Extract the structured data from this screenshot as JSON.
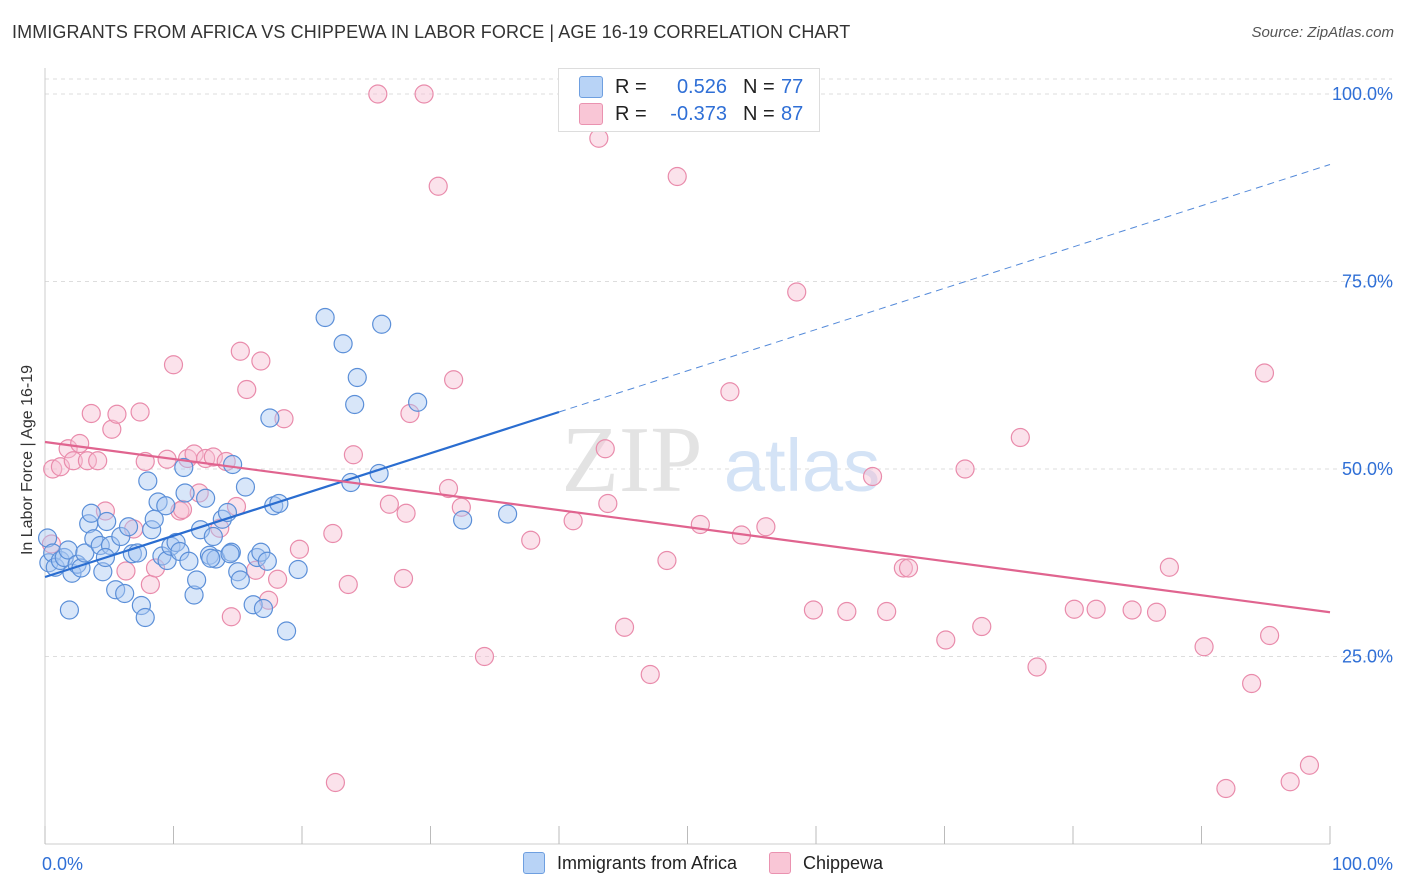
{
  "header": {
    "title": "IMMIGRANTS FROM AFRICA VS CHIPPEWA IN LABOR FORCE | AGE 16-19 CORRELATION CHART",
    "source": "Source: ZipAtlas.com"
  },
  "watermark": {
    "zip": "ZIP",
    "atlas": "atlas"
  },
  "colors": {
    "blue_fill": "#a9c8f2",
    "blue_stroke": "#5b8fd8",
    "blue_line": "#2a6dd0",
    "pink_fill": "#f7bfd2",
    "pink_stroke": "#e98bab",
    "pink_line": "#e0648f",
    "tick_label": "#2f6fd6"
  },
  "legend": {
    "r_label": "R =",
    "n_label": "N =",
    "rows": [
      {
        "series": "Immigrants from Africa",
        "r": "0.526",
        "n": "77"
      },
      {
        "series": "Chippewa",
        "r": "-0.373",
        "n": "87"
      }
    ]
  },
  "chart_data": {
    "type": "scatter",
    "title": "IMMIGRANTS FROM AFRICA VS CHIPPEWA IN LABOR FORCE | AGE 16-19 CORRELATION CHART",
    "xlabel": "",
    "ylabel": "In Labor Force | Age 16-19",
    "xlim": [
      0,
      100
    ],
    "ylim": [
      0,
      102
    ],
    "x_tick_labels": [
      "0.0%",
      "100.0%"
    ],
    "y_ticks": [
      25,
      50,
      75,
      100
    ],
    "y_tick_labels": [
      "25.0%",
      "50.0%",
      "75.0%",
      "100.0%"
    ],
    "grid": "horizontal dashed",
    "series": [
      {
        "name": "Immigrants from Africa",
        "r": 0.526,
        "n": 77,
        "trend": {
          "x0": 0,
          "y0": 35.6,
          "x1": 40,
          "y1": 57.6,
          "x_ext": 100,
          "y_ext": 90.6
        },
        "points": [
          [
            0.2,
            40.8
          ],
          [
            0.3,
            37.5
          ],
          [
            0.6,
            38.8
          ],
          [
            0.8,
            36.9
          ],
          [
            1.2,
            37.8
          ],
          [
            1.5,
            38.2
          ],
          [
            1.8,
            39.2
          ],
          [
            1.9,
            31.2
          ],
          [
            2.1,
            36.1
          ],
          [
            2.5,
            37.3
          ],
          [
            2.8,
            36.8
          ],
          [
            3.1,
            38.8
          ],
          [
            3.4,
            42.7
          ],
          [
            3.6,
            44.1
          ],
          [
            3.8,
            40.7
          ],
          [
            4.3,
            39.8
          ],
          [
            4.5,
            36.3
          ],
          [
            4.8,
            43.0
          ],
          [
            5.1,
            39.8
          ],
          [
            5.5,
            33.9
          ],
          [
            5.9,
            41.0
          ],
          [
            6.2,
            33.4
          ],
          [
            6.5,
            42.3
          ],
          [
            6.8,
            38.7
          ],
          [
            7.2,
            38.8
          ],
          [
            7.5,
            31.8
          ],
          [
            7.8,
            30.2
          ],
          [
            8.0,
            48.4
          ],
          [
            8.3,
            41.9
          ],
          [
            8.5,
            43.3
          ],
          [
            8.8,
            45.6
          ],
          [
            9.1,
            38.4
          ],
          [
            9.5,
            37.8
          ],
          [
            9.8,
            39.7
          ],
          [
            10.2,
            40.2
          ],
          [
            10.5,
            39.0
          ],
          [
            10.8,
            50.2
          ],
          [
            10.9,
            46.8
          ],
          [
            11.2,
            37.7
          ],
          [
            11.6,
            33.2
          ],
          [
            11.8,
            35.2
          ],
          [
            12.1,
            41.9
          ],
          [
            12.5,
            46.1
          ],
          [
            12.8,
            38.5
          ],
          [
            13.1,
            41.0
          ],
          [
            13.3,
            38.0
          ],
          [
            13.8,
            43.3
          ],
          [
            14.2,
            44.2
          ],
          [
            14.5,
            38.9
          ],
          [
            14.6,
            50.6
          ],
          [
            15.0,
            36.3
          ],
          [
            15.2,
            35.2
          ],
          [
            15.6,
            47.6
          ],
          [
            16.2,
            31.9
          ],
          [
            16.5,
            38.2
          ],
          [
            16.8,
            38.9
          ],
          [
            17.0,
            31.4
          ],
          [
            17.3,
            37.7
          ],
          [
            17.5,
            56.8
          ],
          [
            17.8,
            45.1
          ],
          [
            18.2,
            45.4
          ],
          [
            18.8,
            28.4
          ],
          [
            19.7,
            36.6
          ],
          [
            21.8,
            70.2
          ],
          [
            23.2,
            66.7
          ],
          [
            23.8,
            48.2
          ],
          [
            24.1,
            58.6
          ],
          [
            24.3,
            62.2
          ],
          [
            26.0,
            49.4
          ],
          [
            26.2,
            69.3
          ],
          [
            29.0,
            58.9
          ],
          [
            32.5,
            43.2
          ],
          [
            36.0,
            44.0
          ],
          [
            14.4,
            38.7
          ],
          [
            12.9,
            38.1
          ],
          [
            4.7,
            38.2
          ],
          [
            9.4,
            45.1
          ]
        ]
      },
      {
        "name": "Chippewa",
        "r": -0.373,
        "n": 87,
        "trend": {
          "x0": 0,
          "y0": 53.6,
          "x1": 100,
          "y1": 30.9
        },
        "points": [
          [
            0.5,
            40.0
          ],
          [
            0.6,
            50.0
          ],
          [
            1.2,
            50.3
          ],
          [
            1.8,
            52.7
          ],
          [
            2.2,
            51.1
          ],
          [
            2.7,
            53.4
          ],
          [
            3.3,
            51.1
          ],
          [
            3.6,
            57.4
          ],
          [
            4.1,
            51.1
          ],
          [
            4.7,
            44.4
          ],
          [
            5.2,
            55.3
          ],
          [
            5.6,
            57.3
          ],
          [
            6.3,
            36.4
          ],
          [
            6.9,
            42.0
          ],
          [
            7.4,
            57.6
          ],
          [
            7.8,
            51.0
          ],
          [
            8.2,
            34.6
          ],
          [
            8.6,
            36.8
          ],
          [
            9.5,
            51.3
          ],
          [
            10.0,
            63.9
          ],
          [
            10.5,
            44.4
          ],
          [
            10.7,
            44.6
          ],
          [
            11.1,
            51.4
          ],
          [
            11.6,
            52.0
          ],
          [
            12.0,
            46.8
          ],
          [
            12.5,
            51.4
          ],
          [
            13.1,
            51.6
          ],
          [
            13.6,
            42.1
          ],
          [
            14.1,
            51.0
          ],
          [
            14.5,
            30.3
          ],
          [
            14.9,
            45.0
          ],
          [
            15.2,
            65.7
          ],
          [
            15.7,
            60.6
          ],
          [
            16.4,
            36.5
          ],
          [
            16.8,
            64.4
          ],
          [
            17.4,
            32.5
          ],
          [
            18.1,
            35.3
          ],
          [
            18.6,
            56.7
          ],
          [
            19.8,
            39.3
          ],
          [
            22.4,
            41.4
          ],
          [
            22.6,
            8.2
          ],
          [
            23.6,
            34.6
          ],
          [
            24.0,
            51.9
          ],
          [
            25.9,
            100.0
          ],
          [
            26.8,
            45.3
          ],
          [
            27.9,
            35.4
          ],
          [
            28.1,
            44.1
          ],
          [
            28.4,
            57.4
          ],
          [
            29.5,
            100.0
          ],
          [
            30.6,
            87.7
          ],
          [
            31.4,
            47.4
          ],
          [
            31.8,
            61.9
          ],
          [
            32.4,
            44.9
          ],
          [
            34.2,
            25.0
          ],
          [
            37.8,
            40.5
          ],
          [
            41.1,
            43.1
          ],
          [
            43.1,
            94.1
          ],
          [
            43.6,
            52.7
          ],
          [
            43.8,
            45.4
          ],
          [
            45.1,
            28.9
          ],
          [
            47.1,
            22.6
          ],
          [
            48.4,
            37.8
          ],
          [
            49.2,
            89.0
          ],
          [
            51.0,
            42.6
          ],
          [
            53.3,
            60.3
          ],
          [
            54.2,
            41.2
          ],
          [
            56.1,
            42.3
          ],
          [
            58.5,
            73.6
          ],
          [
            59.8,
            31.2
          ],
          [
            62.4,
            31.0
          ],
          [
            64.4,
            49.0
          ],
          [
            65.5,
            31.0
          ],
          [
            66.8,
            36.8
          ],
          [
            67.2,
            36.8
          ],
          [
            70.1,
            27.2
          ],
          [
            71.6,
            50.0
          ],
          [
            72.9,
            29.0
          ],
          [
            75.9,
            54.2
          ],
          [
            77.2,
            23.6
          ],
          [
            80.1,
            31.3
          ],
          [
            81.8,
            31.3
          ],
          [
            86.5,
            30.9
          ],
          [
            87.5,
            36.9
          ],
          [
            90.2,
            26.3
          ],
          [
            91.9,
            7.4
          ],
          [
            93.9,
            21.4
          ],
          [
            94.9,
            62.8
          ]
        ],
        "extra_points": [
          [
            95.3,
            27.8
          ],
          [
            96.9,
            8.3
          ],
          [
            98.4,
            10.5
          ],
          [
            84.6,
            31.2
          ]
        ]
      }
    ]
  }
}
